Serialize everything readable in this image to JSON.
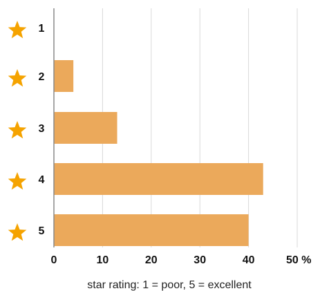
{
  "chart_data": {
    "type": "bar",
    "orientation": "horizontal",
    "categories": [
      "1",
      "2",
      "3",
      "4",
      "5"
    ],
    "values": [
      0,
      4,
      13,
      43,
      40
    ],
    "xlabel": "star rating: 1 =  poor, 5 = excellent",
    "xlim": [
      0,
      50
    ],
    "xticks": [
      "0",
      "10",
      "20",
      "30",
      "40",
      "50 %"
    ],
    "grid": "vertical",
    "legend": "none",
    "category_icon": "star-icon",
    "colors": {
      "bar": "#EBA95B",
      "star": "#F5A300",
      "grid": "#D9D9D9",
      "axis": "#888888"
    }
  }
}
